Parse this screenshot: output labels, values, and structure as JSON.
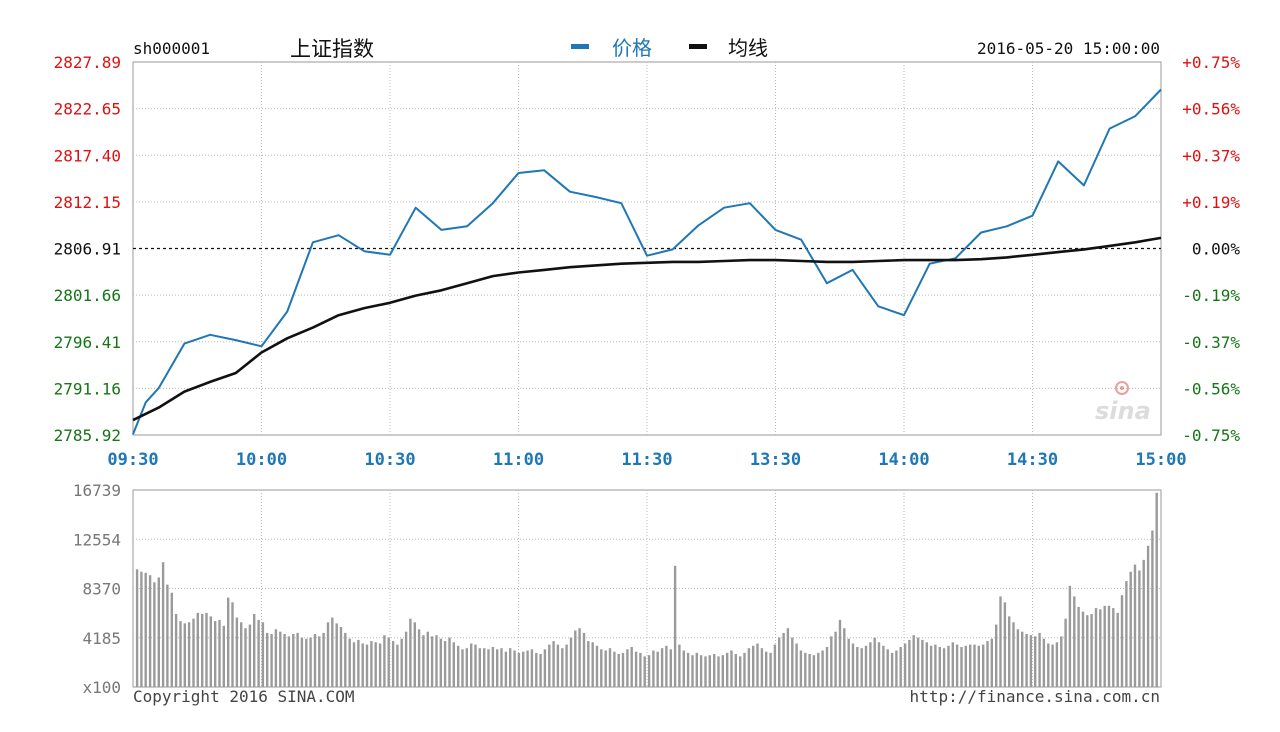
{
  "colors": {
    "price_line": "#1f77b4",
    "avg_line": "#111111",
    "up": "#e01010",
    "down": "#167516",
    "neutral": "#111111",
    "grid": "#bbbbbb",
    "volume_bar": "#9a9a9a",
    "time_label": "#1f77b4"
  },
  "header": {
    "symbol": "sh000001",
    "name": "上证指数",
    "legend_price": "价格",
    "legend_avg": "均线",
    "datetime": "2016-05-20 15:00:00"
  },
  "footer": {
    "copyright": "Copyright 2016 SINA.COM",
    "url": "http://finance.sina.com.cn"
  },
  "watermark": "sina",
  "chart_data": [
    {
      "type": "line",
      "x_labels": [
        "09:30",
        "10:00",
        "10:30",
        "11:00",
        "11:30",
        "13:30",
        "14:00",
        "14:30",
        "15:00"
      ],
      "y_ticks": [
        "2827.89",
        "2822.65",
        "2817.40",
        "2812.15",
        "2806.91",
        "2801.66",
        "2796.41",
        "2791.16",
        "2785.92"
      ],
      "pct_ticks": [
        "+0.75%",
        "+0.56%",
        "+0.37%",
        "+0.19%",
        "0.00%",
        "-0.19%",
        "-0.37%",
        "-0.56%",
        "-0.75%"
      ],
      "ylim": [
        2785.92,
        2827.89
      ],
      "prev_close": 2806.91,
      "series": [
        {
          "name": "价格",
          "x": [
            0,
            3,
            6,
            12,
            18,
            24,
            30,
            36,
            42,
            48,
            54,
            60,
            66,
            72,
            78,
            84,
            90,
            96,
            102,
            108,
            114,
            120,
            126,
            132,
            138,
            144,
            150,
            156,
            162,
            168,
            174,
            180,
            186,
            192,
            198,
            204,
            210,
            216,
            222,
            228,
            234,
            240
          ],
          "values": [
            2786.0,
            2789.6,
            2791.2,
            2796.2,
            2797.2,
            2796.6,
            2795.9,
            2799.8,
            2807.6,
            2808.4,
            2806.6,
            2806.2,
            2811.5,
            2809.0,
            2809.4,
            2812.0,
            2815.4,
            2815.7,
            2813.3,
            2812.7,
            2812.0,
            2806.1,
            2806.8,
            2809.5,
            2811.5,
            2812.0,
            2809.0,
            2807.9,
            2803.0,
            2804.5,
            2800.4,
            2799.4,
            2805.2,
            2805.8,
            2808.7,
            2809.4,
            2810.6,
            2816.7,
            2814.0,
            2820.4,
            2821.8,
            2824.8
          ]
        },
        {
          "name": "均线",
          "x": [
            0,
            6,
            12,
            18,
            24,
            30,
            36,
            42,
            48,
            54,
            60,
            66,
            72,
            78,
            84,
            90,
            96,
            102,
            108,
            114,
            120,
            126,
            132,
            138,
            144,
            150,
            156,
            162,
            168,
            174,
            180,
            186,
            192,
            198,
            204,
            210,
            216,
            222,
            228,
            234,
            240
          ],
          "values": [
            2787.6,
            2789.0,
            2790.8,
            2791.9,
            2792.9,
            2795.2,
            2796.8,
            2798.0,
            2799.4,
            2800.2,
            2800.8,
            2801.6,
            2802.2,
            2803.0,
            2803.8,
            2804.2,
            2804.5,
            2804.8,
            2805.0,
            2805.2,
            2805.3,
            2805.4,
            2805.4,
            2805.5,
            2805.6,
            2805.6,
            2805.5,
            2805.4,
            2805.4,
            2805.5,
            2805.6,
            2805.6,
            2805.6,
            2805.7,
            2805.9,
            2806.2,
            2806.5,
            2806.8,
            2807.2,
            2807.6,
            2808.1
          ]
        }
      ]
    },
    {
      "type": "bar",
      "y_ticks": [
        "16739",
        "12554",
        "8370",
        "4185",
        "x100"
      ],
      "ylim": [
        0,
        16739
      ],
      "x_start": 0,
      "x_step": 1,
      "series": [
        {
          "values": [
            10000,
            9800,
            9700,
            9500,
            8900,
            9300,
            10600,
            8700,
            8000,
            6200,
            5600,
            5400,
            5500,
            5800,
            6300,
            6200,
            6300,
            6000,
            5600,
            5700,
            5200,
            7600,
            7200,
            5900,
            5500,
            5000,
            5300,
            6200,
            5700,
            5500,
            4600,
            4500,
            4900,
            4700,
            4500,
            4300,
            4500,
            4600,
            4200,
            4100,
            4200,
            4500,
            4300,
            4600,
            5500,
            5900,
            5400,
            5100,
            4600,
            4100,
            3800,
            4000,
            3700,
            3600,
            3900,
            3800,
            3700,
            4400,
            4200,
            3900,
            3600,
            4100,
            4700,
            5800,
            5500,
            4900,
            4400,
            4700,
            4300,
            4400,
            4100,
            3900,
            4200,
            3800,
            3500,
            3200,
            3300,
            3700,
            3600,
            3300,
            3300,
            3200,
            3400,
            3200,
            3300,
            3000,
            3300,
            3100,
            2900,
            3000,
            3100,
            3200,
            2900,
            2800,
            3200,
            3600,
            3900,
            3600,
            3300,
            3600,
            4200,
            4800,
            5000,
            4600,
            3900,
            3800,
            3500,
            3200,
            3100,
            3300,
            3000,
            2800,
            2900,
            3200,
            3400,
            3000,
            2900,
            2600,
            2700,
            3100,
            3000,
            3300,
            3500,
            3200,
            10300,
            3600,
            3100,
            2900,
            2700,
            2900,
            2700,
            2600,
            2700,
            2800,
            2600,
            2700,
            2900,
            3100,
            2800,
            2600,
            2900,
            3300,
            3500,
            3700,
            3300,
            3000,
            2900,
            3600,
            4200,
            4600,
            5000,
            4200,
            3700,
            3100,
            2900,
            2800,
            2700,
            2900,
            3100,
            3400,
            4300,
            4700,
            5700,
            5000,
            4100,
            3700,
            3400,
            3300,
            3500,
            3800,
            4200,
            3800,
            3500,
            3200,
            2900,
            3100,
            3400,
            3700,
            4000,
            4400,
            4200,
            4000,
            3800,
            3500,
            3600,
            3400,
            3300,
            3500,
            3800,
            3600,
            3400,
            3500,
            3600,
            3600,
            3500,
            3600,
            3900,
            4100,
            5300,
            7700,
            7200,
            6000,
            5500,
            4900,
            4700,
            4500,
            4400,
            4300,
            4600,
            4100,
            3700,
            3600,
            3800,
            4300,
            5800,
            8600,
            7700,
            6800,
            6400,
            6100,
            6200,
            6700,
            6600,
            6900,
            6900,
            6700,
            6300,
            7800,
            9000,
            9800,
            10400,
            9900,
            10800,
            12000,
            13300,
            16500
          ]
        }
      ]
    }
  ]
}
